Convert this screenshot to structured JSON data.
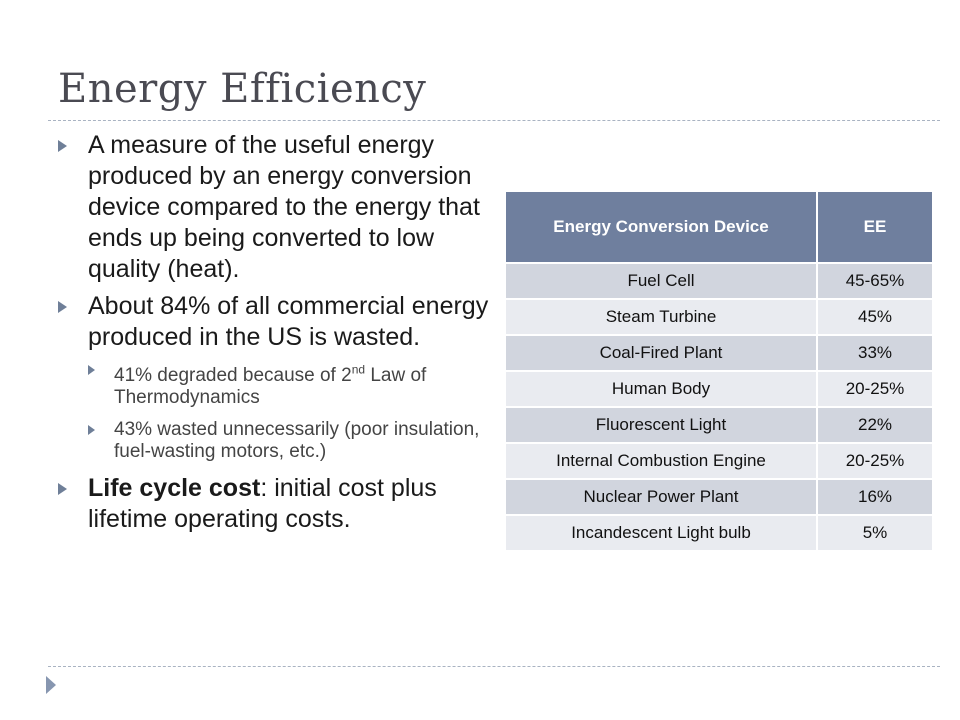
{
  "slide": {
    "title": "Energy Efficiency",
    "bullets": [
      {
        "text": "A measure of the useful energy produced by an energy conversion device compared to the energy that ends up being converted to low quality (heat)."
      },
      {
        "text": "About 84% of all commercial energy produced in the US is wasted."
      },
      {
        "sub": [
          {
            "pre": "41% degraded because of 2",
            "sup": "nd",
            "post": " Law of Thermodynamics"
          },
          {
            "text": "43% wasted unnecessarily (poor insulation, fuel-wasting motors, etc.)"
          }
        ]
      },
      {
        "bold": "Life cycle cost",
        "rest": ":  initial cost plus lifetime operating costs."
      }
    ]
  },
  "table": {
    "headers": [
      "Energy Conversion Device",
      "EE"
    ],
    "rows": [
      [
        "Fuel Cell",
        "45-65%"
      ],
      [
        "Steam Turbine",
        "45%"
      ],
      [
        "Coal-Fired Plant",
        "33%"
      ],
      [
        "Human Body",
        "20-25%"
      ],
      [
        "Fluorescent Light",
        "22%"
      ],
      [
        "Internal Combustion Engine",
        "20-25%"
      ],
      [
        "Nuclear Power Plant",
        "16%"
      ],
      [
        "Incandescent Light bulb",
        "5%"
      ]
    ]
  },
  "colors": {
    "header_bg": "#6f7f9e",
    "row_odd": "#d1d5de",
    "row_even": "#e9ebf0",
    "bullet_arrow": "#6f7f98",
    "title": "#4a4a52"
  }
}
